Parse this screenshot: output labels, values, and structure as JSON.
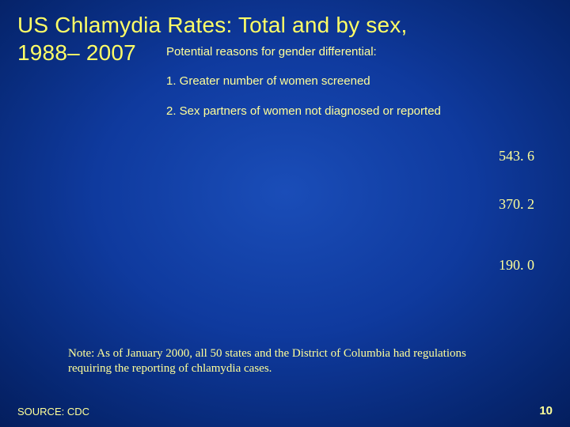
{
  "title_line1": "US Chlamydia Rates: Total and by sex,",
  "title_line2": "1988– 2007",
  "subtitle": "Potential reasons for gender differential:",
  "reasons": {
    "r1": "1. Greater number of women screened",
    "r2": "2. Sex partners of women not diagnosed or reported"
  },
  "values": {
    "v1": "543. 6",
    "v2": "370. 2",
    "v3": "190. 0"
  },
  "note": "Note: As of January 2000, all 50 states and the District of Columbia had regulations requiring the reporting of chlamydia cases.",
  "source": "SOURCE: CDC",
  "page_number": "10",
  "colors": {
    "text": "#ffff99",
    "title": "#ffff66",
    "bg_center": "#1a4db8",
    "bg_edge": "#031850"
  }
}
